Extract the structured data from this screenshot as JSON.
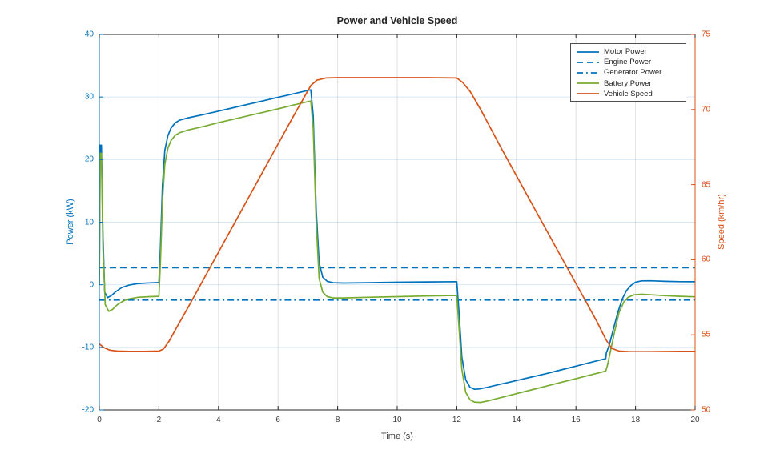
{
  "chart_data": {
    "type": "line",
    "title": "Power and Vehicle Speed",
    "xlabel": "Time (s)",
    "xlim": [
      0,
      20
    ],
    "x_ticks": [
      0,
      2,
      4,
      6,
      8,
      10,
      12,
      14,
      16,
      18,
      20
    ],
    "grid": true,
    "legend_position": "top-right-inside",
    "y_left": {
      "label": "Power (kW)",
      "lim": [
        -20,
        40
      ],
      "ticks": [
        -20,
        -10,
        0,
        10,
        20,
        30,
        40
      ],
      "color": "#0072BD"
    },
    "y_right": {
      "label": "Speed (km/hr)",
      "lim": [
        50,
        75
      ],
      "ticks": [
        50,
        55,
        60,
        65,
        70,
        75
      ],
      "color": "#D95319"
    },
    "series": [
      {
        "name": "Motor Power",
        "axis": "left",
        "style": "solid",
        "color": "#0072BD",
        "points": [
          [
            0,
            0
          ],
          [
            0.03,
            22.3
          ],
          [
            0.07,
            22.3
          ],
          [
            0.12,
            8
          ],
          [
            0.18,
            -1.2
          ],
          [
            0.28,
            -2.05
          ],
          [
            0.4,
            -1.75
          ],
          [
            0.55,
            -1.1
          ],
          [
            0.75,
            -0.45
          ],
          [
            1.0,
            -0.05
          ],
          [
            1.3,
            0.2
          ],
          [
            1.7,
            0.3
          ],
          [
            2.0,
            0.35
          ],
          [
            2.05,
            6
          ],
          [
            2.12,
            16
          ],
          [
            2.2,
            21.5
          ],
          [
            2.3,
            23.8
          ],
          [
            2.4,
            25.0
          ],
          [
            2.55,
            25.9
          ],
          [
            2.7,
            26.3
          ],
          [
            3.0,
            26.7
          ],
          [
            3.5,
            27.2
          ],
          [
            4.0,
            27.75
          ],
          [
            4.5,
            28.3
          ],
          [
            5.0,
            28.85
          ],
          [
            5.5,
            29.4
          ],
          [
            6.0,
            29.95
          ],
          [
            6.5,
            30.5
          ],
          [
            7.0,
            31.05
          ],
          [
            7.1,
            31.15
          ],
          [
            7.18,
            27
          ],
          [
            7.28,
            12
          ],
          [
            7.38,
            3.5
          ],
          [
            7.5,
            1.2
          ],
          [
            7.65,
            0.55
          ],
          [
            7.85,
            0.33
          ],
          [
            8.2,
            0.28
          ],
          [
            9,
            0.33
          ],
          [
            10,
            0.4
          ],
          [
            11,
            0.45
          ],
          [
            12,
            0.5
          ],
          [
            12.07,
            -4
          ],
          [
            12.17,
            -11.5
          ],
          [
            12.3,
            -15.2
          ],
          [
            12.45,
            -16.4
          ],
          [
            12.6,
            -16.7
          ],
          [
            12.75,
            -16.65
          ],
          [
            13,
            -16.4
          ],
          [
            13.5,
            -15.85
          ],
          [
            14,
            -15.3
          ],
          [
            14.5,
            -14.75
          ],
          [
            15,
            -14.2
          ],
          [
            15.5,
            -13.6
          ],
          [
            16,
            -13.0
          ],
          [
            16.5,
            -12.4
          ],
          [
            17,
            -11.8
          ],
          [
            17.02,
            -10.9
          ],
          [
            17.12,
            -9.6
          ],
          [
            17.25,
            -7.2
          ],
          [
            17.4,
            -4.5
          ],
          [
            17.55,
            -2.3
          ],
          [
            17.7,
            -0.9
          ],
          [
            17.85,
            -0.1
          ],
          [
            18.0,
            0.4
          ],
          [
            18.2,
            0.62
          ],
          [
            18.5,
            0.63
          ],
          [
            19,
            0.55
          ],
          [
            19.5,
            0.5
          ],
          [
            20,
            0.48
          ]
        ]
      },
      {
        "name": "Engine Power",
        "axis": "left",
        "style": "dashed",
        "color": "#0072BD",
        "points": [
          [
            0,
            2.72
          ],
          [
            20,
            2.72
          ]
        ]
      },
      {
        "name": "Generator Power",
        "axis": "left",
        "style": "dashdot",
        "color": "#0072BD",
        "points": [
          [
            0,
            -2.45
          ],
          [
            20,
            -2.45
          ]
        ]
      },
      {
        "name": "Battery Power",
        "axis": "left",
        "style": "solid",
        "color": "#77AC30",
        "points": [
          [
            0,
            0
          ],
          [
            0.03,
            21
          ],
          [
            0.07,
            21
          ],
          [
            0.12,
            6
          ],
          [
            0.2,
            -3.2
          ],
          [
            0.32,
            -4.25
          ],
          [
            0.45,
            -3.9
          ],
          [
            0.6,
            -3.2
          ],
          [
            0.8,
            -2.6
          ],
          [
            1.0,
            -2.25
          ],
          [
            1.3,
            -2.0
          ],
          [
            1.7,
            -1.9
          ],
          [
            2.0,
            -1.85
          ],
          [
            2.05,
            3.5
          ],
          [
            2.12,
            13.5
          ],
          [
            2.2,
            19.3
          ],
          [
            2.3,
            21.8
          ],
          [
            2.4,
            23.0
          ],
          [
            2.55,
            23.9
          ],
          [
            2.7,
            24.3
          ],
          [
            3.0,
            24.75
          ],
          [
            3.5,
            25.3
          ],
          [
            4.0,
            25.9
          ],
          [
            4.5,
            26.45
          ],
          [
            5.0,
            27.0
          ],
          [
            5.5,
            27.55
          ],
          [
            6.0,
            28.1
          ],
          [
            6.5,
            28.7
          ],
          [
            7.0,
            29.25
          ],
          [
            7.1,
            29.35
          ],
          [
            7.18,
            25
          ],
          [
            7.28,
            10
          ],
          [
            7.38,
            1
          ],
          [
            7.5,
            -1.2
          ],
          [
            7.65,
            -1.9
          ],
          [
            7.85,
            -2.1
          ],
          [
            8.2,
            -2.1
          ],
          [
            9,
            -2.0
          ],
          [
            10,
            -1.9
          ],
          [
            11,
            -1.8
          ],
          [
            12,
            -1.7
          ],
          [
            12.07,
            -6.5
          ],
          [
            12.17,
            -13.5
          ],
          [
            12.3,
            -17.2
          ],
          [
            12.45,
            -18.4
          ],
          [
            12.6,
            -18.75
          ],
          [
            12.8,
            -18.8
          ],
          [
            13,
            -18.6
          ],
          [
            13.5,
            -18.0
          ],
          [
            14,
            -17.4
          ],
          [
            14.5,
            -16.8
          ],
          [
            15,
            -16.2
          ],
          [
            15.5,
            -15.6
          ],
          [
            16,
            -15.0
          ],
          [
            16.5,
            -14.4
          ],
          [
            17,
            -13.8
          ],
          [
            17.05,
            -13.0
          ],
          [
            17.15,
            -10.8
          ],
          [
            17.3,
            -7.4
          ],
          [
            17.45,
            -4.4
          ],
          [
            17.6,
            -2.8
          ],
          [
            17.75,
            -2.0
          ],
          [
            17.95,
            -1.6
          ],
          [
            18.2,
            -1.52
          ],
          [
            18.6,
            -1.62
          ],
          [
            19,
            -1.75
          ],
          [
            19.5,
            -1.85
          ],
          [
            20,
            -1.92
          ]
        ]
      },
      {
        "name": "Vehicle Speed",
        "axis": "right",
        "style": "solid",
        "color": "#D95319",
        "points": [
          [
            0,
            54.4
          ],
          [
            0.15,
            54.15
          ],
          [
            0.35,
            53.98
          ],
          [
            0.6,
            53.92
          ],
          [
            1.0,
            53.9
          ],
          [
            1.5,
            53.9
          ],
          [
            2.0,
            53.92
          ],
          [
            2.15,
            54.05
          ],
          [
            2.35,
            54.6
          ],
          [
            2.6,
            55.5
          ],
          [
            3.0,
            56.9
          ],
          [
            3.5,
            58.7
          ],
          [
            4.0,
            60.5
          ],
          [
            4.5,
            62.3
          ],
          [
            5.0,
            64.1
          ],
          [
            5.5,
            65.9
          ],
          [
            6.0,
            67.7
          ],
          [
            6.5,
            69.5
          ],
          [
            6.9,
            70.9
          ],
          [
            7.1,
            71.6
          ],
          [
            7.3,
            71.95
          ],
          [
            7.6,
            72.1
          ],
          [
            8,
            72.12
          ],
          [
            9,
            72.12
          ],
          [
            10,
            72.12
          ],
          [
            11,
            72.12
          ],
          [
            12,
            72.1
          ],
          [
            12.2,
            71.8
          ],
          [
            12.45,
            71.2
          ],
          [
            12.8,
            70.0
          ],
          [
            13.5,
            67.4
          ],
          [
            14.5,
            63.8
          ],
          [
            15.5,
            60.2
          ],
          [
            16.2,
            57.7
          ],
          [
            16.7,
            55.9
          ],
          [
            17.0,
            54.7
          ],
          [
            17.2,
            54.1
          ],
          [
            17.45,
            53.92
          ],
          [
            17.8,
            53.88
          ],
          [
            18.5,
            53.88
          ],
          [
            19.5,
            53.9
          ],
          [
            20,
            53.9
          ]
        ]
      }
    ],
    "colors": {
      "blue": "#0072BD",
      "orange": "#D95319",
      "green": "#77AC30",
      "axis_dark": "#262626",
      "grid_horizontal": "rgba(0,114,189,0.16)",
      "grid_vertical": "rgba(60,60,80,0.15)"
    }
  }
}
